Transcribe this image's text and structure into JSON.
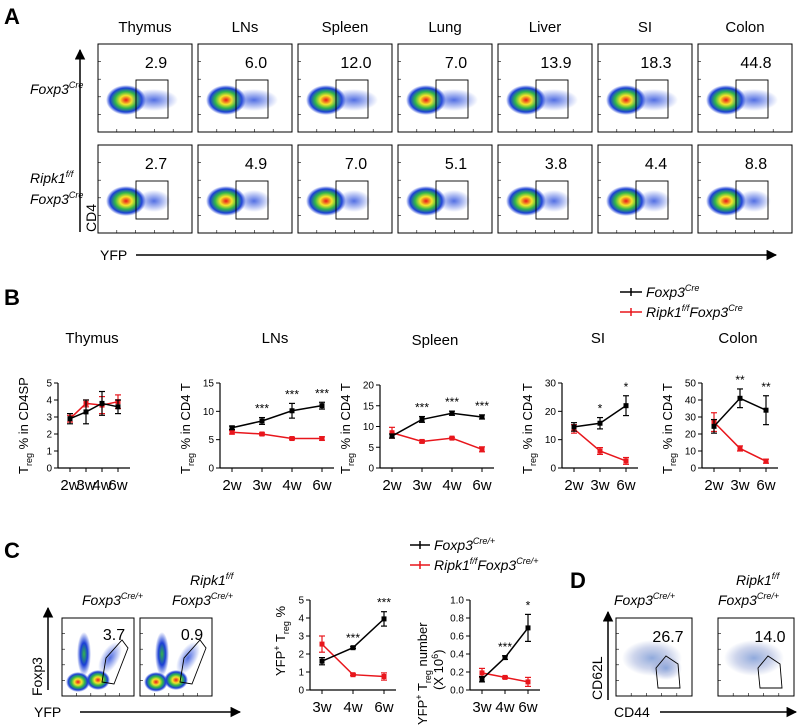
{
  "panelA": {
    "letter": "A",
    "tissues": [
      "Thymus",
      "LNs",
      "Spleen",
      "Lung",
      "Liver",
      "SI",
      "Colon"
    ],
    "row1_pct": [
      "2.9",
      "6.0",
      "12.0",
      "7.0",
      "13.9",
      "18.3",
      "44.8"
    ],
    "row2_pct": [
      "2.7",
      "4.9",
      "7.0",
      "5.1",
      "3.8",
      "4.4",
      "8.8"
    ],
    "y_axis": "CD4",
    "x_axis": "YFP"
  },
  "genotypes": {
    "foxp3cre_base": "Foxp3",
    "cre_sup": "Cre",
    "cre_plus_sup": "Cre/+",
    "ripk1_base": "Ripk1",
    "ff_sup": "f/f"
  },
  "panelB": {
    "letter": "B",
    "legend": {
      "series1_color": "#000000",
      "series2_color": "#e8161c"
    },
    "treg_T": "T",
    "treg_sub": "reg",
    "chart_data": [
      {
        "type": "line",
        "title": "Thymus",
        "ylabel_suffix": "% in CD4SP",
        "categories": [
          "2w",
          "3w",
          "4w",
          "6w"
        ],
        "ylim": [
          0,
          5
        ],
        "ticks": [
          "0",
          "1",
          "2",
          "3",
          "4",
          "5"
        ],
        "series": [
          {
            "name": "Foxp3Cre",
            "values": [
              2.9,
              3.3,
              3.8,
              3.6
            ],
            "err": [
              0.3,
              0.7,
              0.7,
              0.4
            ]
          },
          {
            "name": "Ripk1f/fFoxp3Cre",
            "values": [
              2.9,
              3.8,
              3.7,
              3.9
            ],
            "err": [
              0.2,
              0.2,
              0.5,
              0.4
            ]
          }
        ],
        "sig": [
          "",
          "",
          "",
          ""
        ]
      },
      {
        "type": "line",
        "title": "LNs",
        "ylabel_suffix": "% in CD4 T",
        "categories": [
          "2w",
          "3w",
          "4w",
          "6w"
        ],
        "ylim": [
          0,
          15
        ],
        "ticks": [
          "0",
          "5",
          "10",
          "15"
        ],
        "series": [
          {
            "name": "Foxp3Cre",
            "values": [
              7.1,
              8.3,
              10.1,
              11.0
            ],
            "err": [
              0.3,
              0.6,
              1.3,
              0.6
            ]
          },
          {
            "name": "Ripk1f/fFoxp3Cre",
            "values": [
              6.3,
              6.0,
              5.2,
              5.2
            ],
            "err": [
              0.3,
              0.2,
              0.2,
              0.3
            ]
          }
        ],
        "sig": [
          "",
          "***",
          "***",
          "***"
        ]
      },
      {
        "type": "line",
        "title": "Spleen",
        "ylabel_suffix": "% in CD4 T",
        "categories": [
          "2w",
          "3w",
          "4w",
          "6w"
        ],
        "ylim": [
          0,
          20
        ],
        "ticks": [
          "0",
          "5",
          "10",
          "15",
          "20"
        ],
        "series": [
          {
            "name": "Foxp3Cre",
            "values": [
              7.7,
              11.7,
              13.2,
              12.3
            ],
            "err": [
              0.5,
              0.7,
              0.5,
              0.5
            ]
          },
          {
            "name": "Ripk1f/fFoxp3Cre",
            "values": [
              8.5,
              6.4,
              7.2,
              4.5
            ],
            "err": [
              1.3,
              0.3,
              0.2,
              0.6
            ]
          }
        ],
        "sig": [
          "",
          "***",
          "***",
          "***"
        ]
      },
      {
        "type": "line",
        "title": "SI",
        "ylabel_suffix": "% in CD4 T",
        "categories": [
          "2w",
          "3w",
          "6w"
        ],
        "ylim": [
          0,
          30
        ],
        "ticks": [
          "0",
          "10",
          "20",
          "30"
        ],
        "series": [
          {
            "name": "Foxp3Cre",
            "values": [
              14.5,
              15.8,
              22.0
            ],
            "err": [
              1.5,
              2.0,
              3.5
            ]
          },
          {
            "name": "Ripk1f/fFoxp3Cre",
            "values": [
              13.8,
              6.0,
              2.5
            ],
            "err": [
              1.5,
              1.2,
              1.2
            ]
          }
        ],
        "sig": [
          "",
          "*",
          "*"
        ]
      },
      {
        "type": "line",
        "title": "Colon",
        "ylabel_suffix": "% in CD4 T",
        "categories": [
          "2w",
          "3w",
          "6w"
        ],
        "ylim": [
          0,
          50
        ],
        "ticks": [
          "0",
          "10",
          "20",
          "30",
          "40",
          "50"
        ],
        "series": [
          {
            "name": "Foxp3Cre",
            "values": [
              24.5,
              41.0,
              34.0
            ],
            "err": [
              4.0,
              5.5,
              8.5
            ]
          },
          {
            "name": "Ripk1f/fFoxp3Cre",
            "values": [
              27.0,
              11.5,
              4.0
            ],
            "err": [
              5.5,
              1.5,
              1.2
            ]
          }
        ],
        "sig": [
          "",
          "**",
          "**"
        ]
      }
    ]
  },
  "panelC": {
    "letter": "C",
    "flow_pct": [
      "3.7",
      "0.9"
    ],
    "y_axis": "Foxp3",
    "x_axis": "YFP",
    "ylabel1_a": "YFP",
    "ylabel1_b": " T",
    "ylabel1_c": " %",
    "ylabel2_a": "YFP",
    "ylabel2_b": " T",
    "ylabel2_c": " number",
    "ylabel2_d": "(X 10",
    "ylabel2_e": "6",
    "ylabel2_f": ")",
    "plus": "+",
    "chart_data": [
      {
        "type": "line",
        "categories": [
          "3w",
          "4w",
          "6w"
        ],
        "ylim": [
          0,
          5
        ],
        "ticks": [
          "0",
          "1",
          "2",
          "3",
          "4",
          "5"
        ],
        "series": [
          {
            "name": "Foxp3Cre/+",
            "values": [
              1.6,
              2.35,
              3.95
            ],
            "err": [
              0.2,
              0.05,
              0.4
            ]
          },
          {
            "name": "Ripk1f/fFoxp3Cre/+",
            "values": [
              2.55,
              0.85,
              0.75
            ],
            "err": [
              0.45,
              0.05,
              0.2
            ]
          }
        ],
        "sig": [
          "",
          "***",
          "***"
        ]
      },
      {
        "type": "line",
        "categories": [
          "3w",
          "4w",
          "6w"
        ],
        "ylim": [
          0,
          1.0
        ],
        "ticks": [
          "0.0",
          "0.2",
          "0.4",
          "0.6",
          "0.8",
          "1.0"
        ],
        "series": [
          {
            "name": "Foxp3Cre/+",
            "values": [
              0.12,
              0.36,
              0.69
            ],
            "err": [
              0.03,
              0.02,
              0.15
            ]
          },
          {
            "name": "Ripk1f/fFoxp3Cre/+",
            "values": [
              0.19,
              0.14,
              0.09
            ],
            "err": [
              0.05,
              0.01,
              0.05
            ]
          }
        ],
        "sig": [
          "",
          "***",
          "*"
        ]
      }
    ]
  },
  "panelD": {
    "letter": "D",
    "flow_pct": [
      "26.7",
      "14.0"
    ],
    "y_axis": "CD62L",
    "x_axis": "CD44"
  }
}
